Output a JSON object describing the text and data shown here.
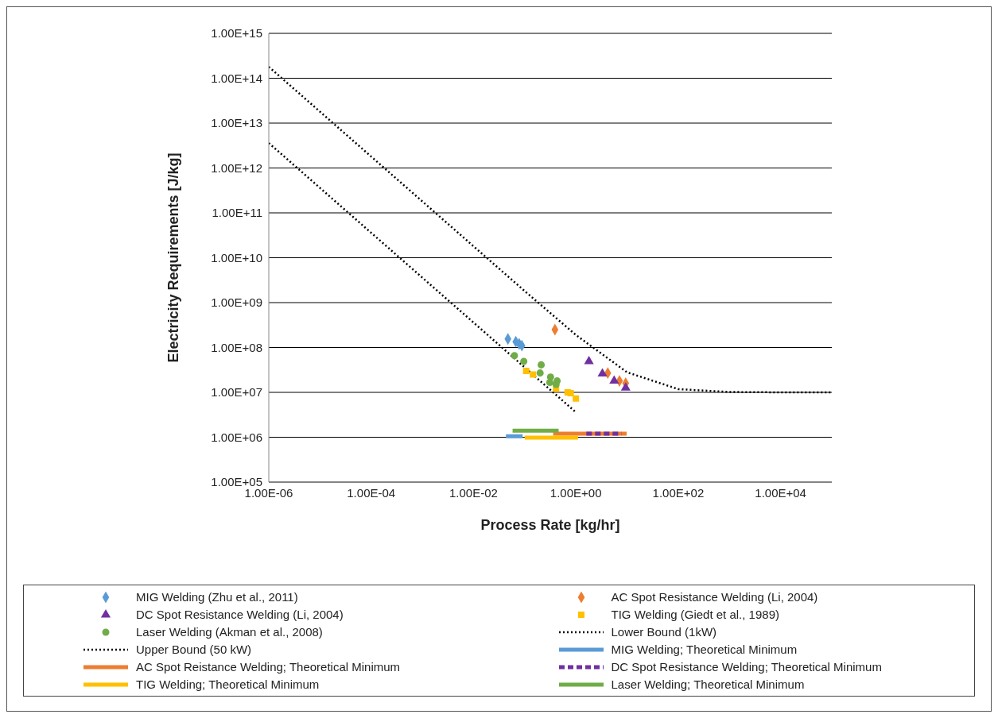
{
  "chart_data": {
    "type": "scatter",
    "xlabel": "Process Rate [kg/hr]",
    "ylabel": "Electricity Requirements [J/kg]",
    "log": "xy",
    "grid": "y",
    "legend": "bottom",
    "xlim": [
      1e-06,
      100000.0
    ],
    "ylim": [
      100000.0,
      1000000000000000.0
    ],
    "xticks": [
      {
        "value": 1e-06,
        "label": "1.00E-06"
      },
      {
        "value": 0.0001,
        "label": "1.00E-04"
      },
      {
        "value": 0.01,
        "label": "1.00E-02"
      },
      {
        "value": 1,
        "label": "1.00E+00"
      },
      {
        "value": 100,
        "label": "1.00E+02"
      },
      {
        "value": 10000,
        "label": "1.00E+04"
      }
    ],
    "yticks": [
      {
        "value": 100000.0,
        "label": "1.00E+05"
      },
      {
        "value": 1000000.0,
        "label": "1.00E+06"
      },
      {
        "value": 10000000.0,
        "label": "1.00E+07"
      },
      {
        "value": 100000000.0,
        "label": "1.00E+08"
      },
      {
        "value": 1000000000.0,
        "label": "1.00E+09"
      },
      {
        "value": 10000000000.0,
        "label": "1.00E+10"
      },
      {
        "value": 100000000000.0,
        "label": "1.00E+11"
      },
      {
        "value": 1000000000000.0,
        "label": "1.00E+12"
      },
      {
        "value": 10000000000000.0,
        "label": "1.00E+13"
      },
      {
        "value": 100000000000000.0,
        "label": "1.00E+14"
      },
      {
        "value": 1000000000000000.0,
        "label": "1.00E+15"
      }
    ],
    "series": [
      {
        "name": "MIG Welding (Zhu et al., 2011)",
        "marker": "diamond",
        "color": "#5b9bd5",
        "x": [
          0.047,
          0.067,
          0.078,
          0.088
        ],
        "values": [
          155000000.0,
          135000000.0,
          120000000.0,
          110000000.0
        ]
      },
      {
        "name": "AC Spot Resistance Welding (Li, 2004)",
        "marker": "diamond",
        "color": "#ed7d31",
        "x": [
          0.39,
          4.2,
          7.1,
          9.4
        ],
        "values": [
          250000000.0,
          27000000.0,
          18000000.0,
          16000000.0
        ]
      },
      {
        "name": "DC Spot Resistance Welding (Li, 2004)",
        "marker": "triangle",
        "color": "#7030a0",
        "x": [
          1.8,
          3.3,
          5.6,
          9.4
        ],
        "values": [
          49000000.0,
          26000000.0,
          18000000.0,
          12600000.0
        ]
      },
      {
        "name": "TIG Welding (Giedt et al., 1989)",
        "marker": "square",
        "color": "#ffc000",
        "x": [
          0.107,
          0.145,
          0.41,
          0.69,
          0.79,
          1.0
        ],
        "values": [
          30000000.0,
          25000000.0,
          12000000.0,
          10000000.0,
          9600000.0,
          7300000.0
        ]
      },
      {
        "name": "Laser Welding (Akman et al., 2008)",
        "marker": "circle",
        "color": "#70ad47",
        "x": [
          0.063,
          0.096,
          0.21,
          0.2,
          0.32,
          0.31,
          0.43,
          0.41
        ],
        "values": [
          66000000.0,
          49000000.0,
          41000000.0,
          27000000.0,
          22000000.0,
          16600000.0,
          18000000.0,
          15000000.0
        ]
      },
      {
        "name": "Lower Bound (1kW)",
        "type": "line",
        "marker": "none",
        "line_style": "dotted",
        "color": "#000000",
        "x": [
          1e-06,
          1e-05,
          0.0001,
          0.001,
          0.01,
          0.1,
          1
        ],
        "values": [
          3600000000000.0,
          360000000000.0,
          36000000000.0,
          3600000000.0,
          360000000.0,
          36000000.0,
          3600000.0
        ]
      },
      {
        "name": "Upper Bound (50 kW)",
        "type": "line",
        "marker": "none",
        "line_style": "dotted",
        "color": "#000000",
        "x": [
          1e-06,
          1e-05,
          0.0001,
          0.001,
          0.01,
          0.1,
          1,
          10,
          100,
          1000,
          10000,
          100000
        ],
        "values": [
          180000000000000.0,
          18000000000000.0,
          1800000000000.0,
          180000000000.0,
          18000000000.0,
          1810000000.0,
          190000000.0,
          28000000.0,
          11800000.0,
          10200000.0,
          10000000.0,
          10000000.0
        ]
      },
      {
        "name": "MIG Welding; Theoretical Minimum",
        "type": "line",
        "marker": "none",
        "line_style": "solid",
        "color": "#5b9bd5",
        "x": [
          0.043,
          0.091
        ],
        "values": [
          1050000.0,
          1050000.0
        ]
      },
      {
        "name": "AC Spot Reistance Welding; Theoretical Minimum",
        "type": "line",
        "marker": "none",
        "line_style": "solid",
        "color": "#ed7d31",
        "x": [
          0.36,
          9.8
        ],
        "values": [
          1200000.0,
          1200000.0
        ]
      },
      {
        "name": "DC Spot Resistance Welding; Theoretical Minimum",
        "type": "line",
        "marker": "none",
        "line_style": "dashed",
        "color": "#7030a0",
        "x": [
          1.6,
          7.8
        ],
        "values": [
          1200000.0,
          1200000.0
        ]
      },
      {
        "name": "TIG Welding; Theoretical Minimum",
        "type": "line",
        "marker": "none",
        "line_style": "solid",
        "color": "#ffc000",
        "x": [
          0.1,
          1.1
        ],
        "values": [
          980000.0,
          980000.0
        ]
      },
      {
        "name": "Laser Welding; Theoretical Minimum",
        "type": "line",
        "marker": "none",
        "line_style": "solid",
        "color": "#70ad47",
        "x": [
          0.058,
          0.46
        ],
        "values": [
          1400000.0,
          1400000.0
        ]
      }
    ]
  }
}
